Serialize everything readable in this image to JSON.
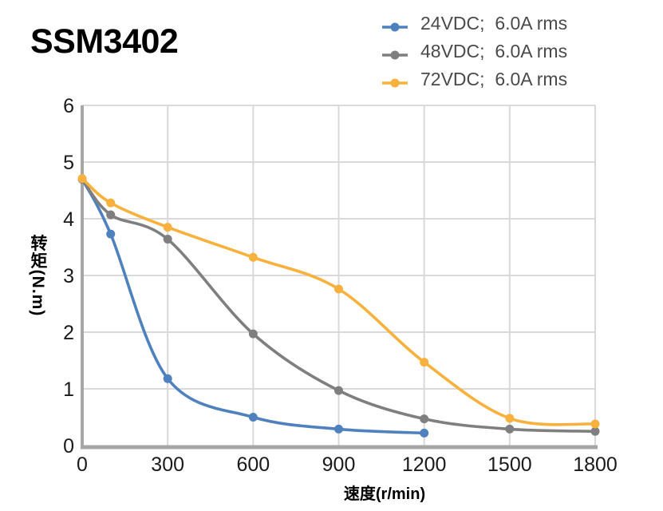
{
  "page": {
    "title": "SSM3402"
  },
  "colors": {
    "series_blue": "#4E81BD",
    "series_gray": "#7F7F7F",
    "series_yellow": "#F7B13C",
    "gridline": "#D9D9DC",
    "axis_line": "#A6A6A9",
    "tick_text": "#1A1A1A",
    "legend_text": "#4A4A4C"
  },
  "legend": {
    "position": "top-right",
    "marker_style": "line-dot"
  },
  "chart_data": {
    "type": "line",
    "title": "SSM3402",
    "xlabel": "速度(r/min)",
    "ylabel": "转矩(N.m)",
    "xlim": [
      0,
      1800
    ],
    "ylim": [
      0,
      6
    ],
    "x_ticks": [
      0,
      300,
      600,
      900,
      1200,
      1500,
      1800
    ],
    "y_ticks": [
      0,
      1,
      2,
      3,
      4,
      5,
      6
    ],
    "grid": true,
    "smooth_lines": true,
    "series": [
      {
        "name": "24VDC;  6.0A rms",
        "key": "24vdc",
        "color": "#4E81BD",
        "x": [
          0,
          100,
          300,
          600,
          900,
          1200
        ],
        "y": [
          4.7,
          3.73,
          1.18,
          0.5,
          0.29,
          0.22
        ]
      },
      {
        "name": "48VDC;  6.0A rms",
        "key": "48vdc",
        "color": "#7F7F7F",
        "x": [
          0,
          100,
          300,
          600,
          900,
          1200,
          1500,
          1800
        ],
        "y": [
          4.7,
          4.07,
          3.64,
          1.97,
          0.97,
          0.47,
          0.29,
          0.25
        ]
      },
      {
        "name": "72VDC;  6.0A rms",
        "key": "72vdc",
        "color": "#F7B13C",
        "x": [
          0,
          100,
          300,
          600,
          900,
          1200,
          1500,
          1800
        ],
        "y": [
          4.71,
          4.28,
          3.85,
          3.32,
          2.76,
          1.47,
          0.48,
          0.38
        ]
      }
    ]
  }
}
